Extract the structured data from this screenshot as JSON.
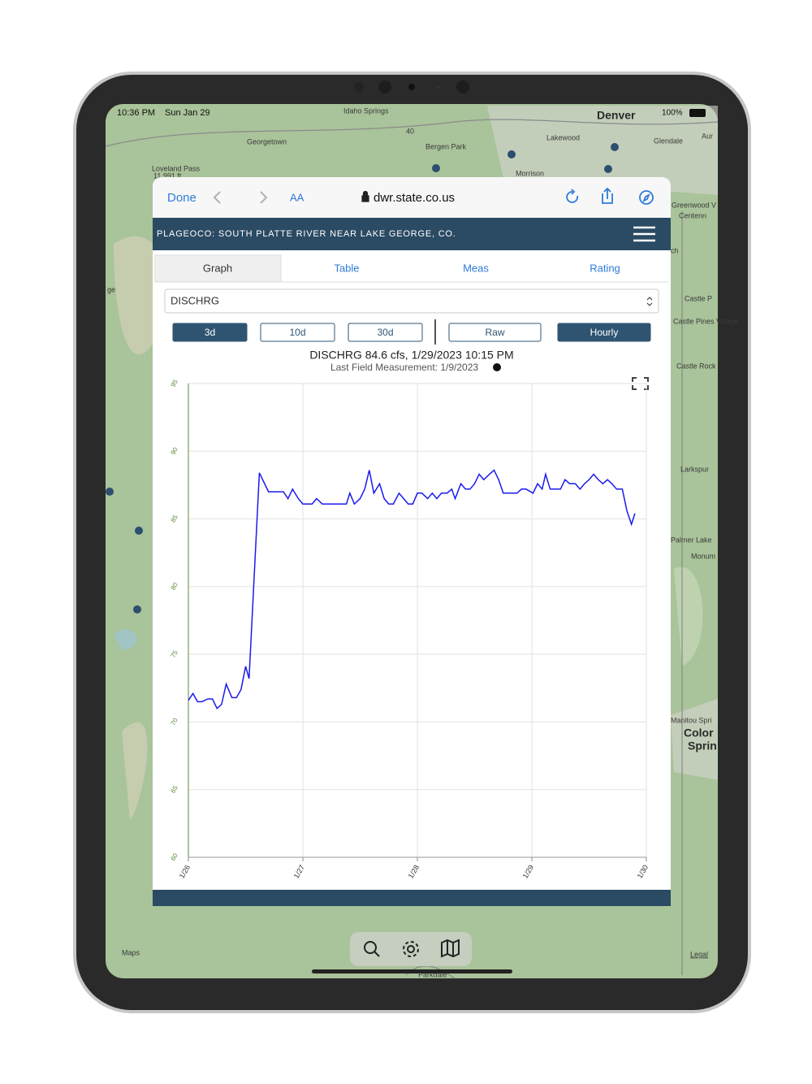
{
  "status_bar": {
    "time": "10:36 PM",
    "date": "Sun Jan 29",
    "battery": "100%"
  },
  "map": {
    "labels": [
      "Idaho Springs",
      "Georgetown",
      "Loveland Pass",
      "11,991 ft",
      "Bergen Park",
      "40",
      "Denver",
      "Lakewood",
      "Glendale",
      "Morrison",
      "Aur",
      "Greenwood V",
      "Centenn",
      "Castle P",
      "Castle Pines Village",
      "Castle Rock",
      "Larkspur",
      "Palmer Lake",
      "Monum",
      "Manitou Spri",
      "Color",
      "Sprin",
      "Legal",
      "Maps",
      "Parkdale",
      "ge",
      "ch"
    ]
  },
  "browser": {
    "done": "Done",
    "text_size": "AA",
    "url": "dwr.state.co.us"
  },
  "site": {
    "title": "PLAGEOCO: SOUTH PLATTE RIVER NEAR LAKE GEORGE, CO.",
    "tabs": [
      "Graph",
      "Table",
      "Meas",
      "Rating"
    ],
    "select": "DISCHRG",
    "range_buttons": [
      "3d",
      "10d",
      "30d"
    ],
    "mode_buttons": [
      "Raw",
      "Hourly"
    ]
  },
  "chart_data": {
    "type": "line",
    "title": "DISCHRG 84.6 cfs, 1/29/2023 10:15 PM",
    "subtitle": "Last Field Measurement: 1/9/2023",
    "x": [
      26.0,
      26.04,
      26.08,
      26.12,
      26.17,
      26.21,
      26.25,
      26.29,
      26.33,
      26.38,
      26.42,
      26.46,
      26.5,
      26.53,
      26.62,
      26.7,
      26.83,
      26.87,
      26.91,
      26.96,
      27.0,
      27.08,
      27.12,
      27.17,
      27.38,
      27.41,
      27.45,
      27.5,
      27.54,
      27.58,
      27.62,
      27.67,
      27.71,
      27.75,
      27.79,
      27.84,
      27.88,
      27.92,
      27.96,
      28.0,
      28.04,
      28.09,
      28.13,
      28.17,
      28.21,
      28.26,
      28.3,
      28.33,
      28.38,
      28.42,
      28.46,
      28.5,
      28.54,
      28.58,
      28.63,
      28.67,
      28.71,
      28.75,
      28.87,
      28.91,
      28.95,
      29.01,
      29.05,
      29.09,
      29.12,
      29.16,
      29.25,
      29.29,
      29.33,
      29.38,
      29.42,
      29.46,
      29.5,
      29.54,
      29.58,
      29.62,
      29.66,
      29.7,
      29.74,
      29.79,
      29.83,
      29.87,
      29.9
    ],
    "series": [
      {
        "color": "#1a1aee",
        "values": [
          71.6,
          72.1,
          71.5,
          71.5,
          71.7,
          71.7,
          71.0,
          71.3,
          72.8,
          71.8,
          71.8,
          72.4,
          74.1,
          73.2,
          88.4,
          87.0,
          87.0,
          86.5,
          87.2,
          86.5,
          86.1,
          86.1,
          86.5,
          86.1,
          86.1,
          86.9,
          86.1,
          86.5,
          87.2,
          88.6,
          86.9,
          87.6,
          86.5,
          86.1,
          86.1,
          86.9,
          86.5,
          86.1,
          86.1,
          86.9,
          86.9,
          86.5,
          86.9,
          86.5,
          86.9,
          86.9,
          87.2,
          86.5,
          87.6,
          87.2,
          87.2,
          87.6,
          88.3,
          87.9,
          88.3,
          88.6,
          87.9,
          86.9,
          86.9,
          87.2,
          87.2,
          86.9,
          87.6,
          87.2,
          88.3,
          87.2,
          87.2,
          87.9,
          87.6,
          87.6,
          87.2,
          87.6,
          87.9,
          88.3,
          87.9,
          87.6,
          87.9,
          87.6,
          87.2,
          87.2,
          85.6,
          84.6,
          85.4
        ]
      }
    ],
    "xlim": [
      26,
      30
    ],
    "ylim": [
      60,
      95
    ],
    "xticks": [
      {
        "value": 26,
        "label": "1/26"
      },
      {
        "value": 27,
        "label": "1/27"
      },
      {
        "value": 28,
        "label": "1/28"
      },
      {
        "value": 29,
        "label": "1/29"
      },
      {
        "value": 30,
        "label": "1/30"
      }
    ],
    "yticks": [
      60,
      65,
      70,
      75,
      80,
      85,
      90,
      95
    ],
    "grid": true
  }
}
